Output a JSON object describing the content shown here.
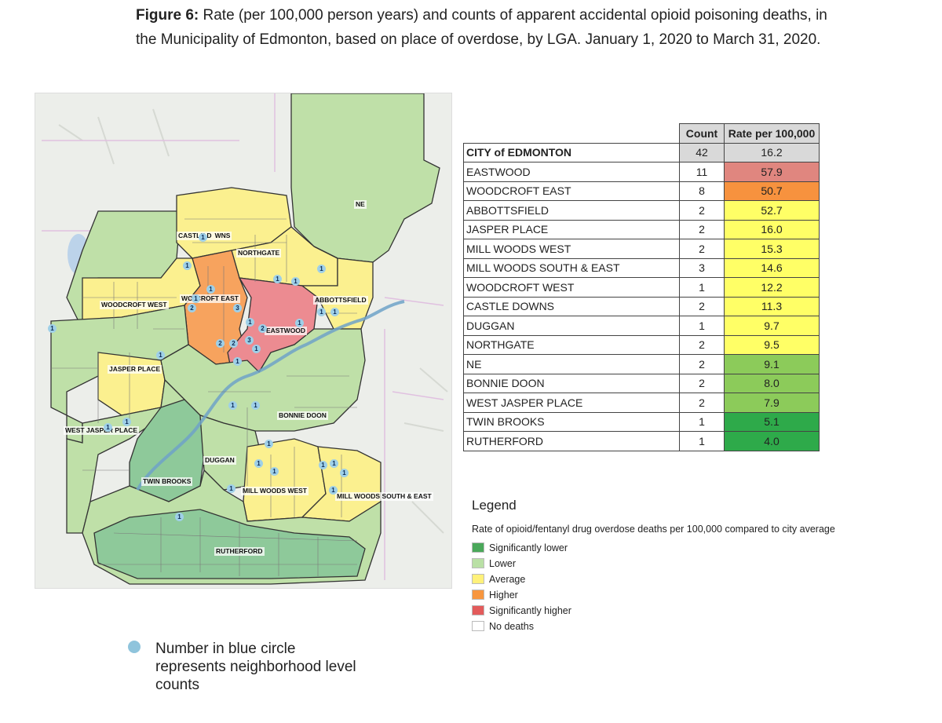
{
  "caption": {
    "label": "Figure 6:",
    "text": " Rate (per 100,000 person years) and counts of apparent accidental opioid poisoning deaths, in the Municipality of Edmonton, based on place of overdose, by LGA. January 1, 2020 to March 31, 2020."
  },
  "table": {
    "headers": {
      "count": "Count",
      "rate": "Rate per 100,000"
    },
    "rows": [
      {
        "name": "CITY of EDMONTON",
        "count": "42",
        "rate": "16.2",
        "color": "#d9d9d9",
        "bold": true
      },
      {
        "name": "EASTWOOD",
        "count": "11",
        "rate": "57.9",
        "color": "#e0867f"
      },
      {
        "name": "WOODCROFT EAST",
        "count": "8",
        "rate": "50.7",
        "color": "#f7923e"
      },
      {
        "name": "ABBOTTSFIELD",
        "count": "2",
        "rate": "52.7",
        "color": "#ffff66"
      },
      {
        "name": "JASPER PLACE",
        "count": "2",
        "rate": "16.0",
        "color": "#ffff66"
      },
      {
        "name": "MILL WOODS WEST",
        "count": "2",
        "rate": "15.3",
        "color": "#ffff66"
      },
      {
        "name": "MILL WOODS SOUTH & EAST",
        "count": "3",
        "rate": "14.6",
        "color": "#ffff66"
      },
      {
        "name": "WOODCROFT WEST",
        "count": "1",
        "rate": "12.2",
        "color": "#ffff66"
      },
      {
        "name": "CASTLE DOWNS",
        "count": "2",
        "rate": "11.3",
        "color": "#ffff66"
      },
      {
        "name": "DUGGAN",
        "count": "1",
        "rate": "9.7",
        "color": "#ffff66"
      },
      {
        "name": "NORTHGATE",
        "count": "2",
        "rate": "9.5",
        "color": "#ffff66"
      },
      {
        "name": "NE",
        "count": "2",
        "rate": "9.1",
        "color": "#8ccb5a"
      },
      {
        "name": "BONNIE DOON",
        "count": "2",
        "rate": "8.0",
        "color": "#8ccb5a"
      },
      {
        "name": "WEST JASPER PLACE",
        "count": "2",
        "rate": "7.9",
        "color": "#8ccb5a"
      },
      {
        "name": "TWIN BROOKS",
        "count": "1",
        "rate": "5.1",
        "color": "#2eaa4a"
      },
      {
        "name": "RUTHERFORD",
        "count": "1",
        "rate": "4.0",
        "color": "#2eaa4a"
      }
    ]
  },
  "legend": {
    "title": "Legend",
    "subtitle": "Rate of opioid/fentanyl drug overdose deaths per 100,000 compared to city average",
    "items": [
      {
        "label": "Significantly lower",
        "color": "#4aa85a"
      },
      {
        "label": "Lower",
        "color": "#b9e0a5"
      },
      {
        "label": "Average",
        "color": "#fff17a"
      },
      {
        "label": "Higher",
        "color": "#f7963f"
      },
      {
        "label": "Significantly higher",
        "color": "#e35b5b"
      },
      {
        "label": "No deaths",
        "color": "#ffffff"
      }
    ]
  },
  "map": {
    "zone_colors": {
      "sig_lower": "#8ec99a",
      "lower": "#bfe0a8",
      "average": "#fbf08f",
      "higher": "#f7a35e",
      "sig_higher": "#ec8b91"
    },
    "labels": {
      "castle_downs": "CASTLE D  WNS",
      "northgate": "NORTHGATE",
      "ne": "NE",
      "woodcroft_west": "WOODCROFT WEST",
      "woodcroft_east": "WO  CROFT EAST",
      "abbottsfield": "ABBOTTSFIELD",
      "eastwood": "EASTWOOD",
      "jasper_place": "JASPER PLACE",
      "bonnie_doon": "BONNIE DOON",
      "west_jasper_place": "WEST JASPER PLACE",
      "duggan": "DUGGAN",
      "twin_brooks": "TWIN BROOKS",
      "mill_woods_west": "MILL WOODS WEST",
      "mill_woods_south_east": "MILL WOODS SOUTH & EAST",
      "rutherford": "RUTHERFORD"
    },
    "counts": {
      "c1": "1",
      "c2": "1",
      "c3": "1",
      "c4": "1",
      "c5": "1",
      "c6": "1",
      "c7": "2",
      "c8": "3",
      "c9": "1",
      "c10": "2",
      "c11": "1",
      "c12": "1",
      "c13": "1",
      "c14": "1",
      "c15": "2",
      "c16": "2",
      "c17": "3",
      "c18": "1",
      "c19": "1",
      "c20": "1",
      "c21": "1",
      "c22": "1",
      "c23": "1",
      "c24": "1",
      "c25": "1",
      "c26": "1",
      "c27": "1",
      "c28": "1",
      "c29": "1",
      "c30": "1",
      "c31": "1",
      "c32": "1",
      "c33": "1",
      "c34": "1"
    }
  },
  "note": {
    "text": "Number in blue circle represents neighborhood level counts"
  }
}
